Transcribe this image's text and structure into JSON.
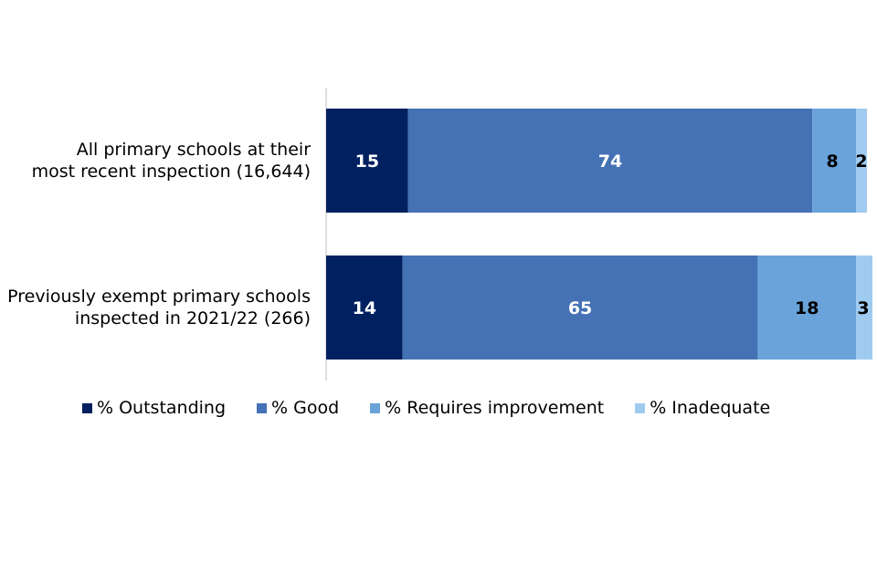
{
  "chart_data": {
    "type": "bar",
    "orientation": "horizontal",
    "stacked": true,
    "title": "",
    "xlabel": "",
    "ylabel": "",
    "xlim": [
      0,
      100
    ],
    "categories": [
      "All primary schools at their most recent inspection (16,644)",
      "Previously exempt primary schools inspected in 2021/22 (266)"
    ],
    "category_lines": [
      [
        "All primary schools at their",
        "most recent inspection (16,644)"
      ],
      [
        "Previously exempt primary schools",
        "inspected in 2021/22 (266)"
      ]
    ],
    "series": [
      {
        "name": "% Outstanding",
        "color": "#002060",
        "label_color": "#ffffff",
        "values": [
          15,
          14
        ]
      },
      {
        "name": "% Good",
        "color": "#4472b4",
        "label_color": "#ffffff",
        "values": [
          74,
          65
        ]
      },
      {
        "name": "% Requires improvement",
        "color": "#6aa3d9",
        "label_color": "#000000",
        "values": [
          8,
          18
        ]
      },
      {
        "name": "% Inadequate",
        "color": "#a0cbf0",
        "label_color": "#000000",
        "values": [
          2,
          3
        ]
      }
    ],
    "legend_position": "bottom"
  }
}
